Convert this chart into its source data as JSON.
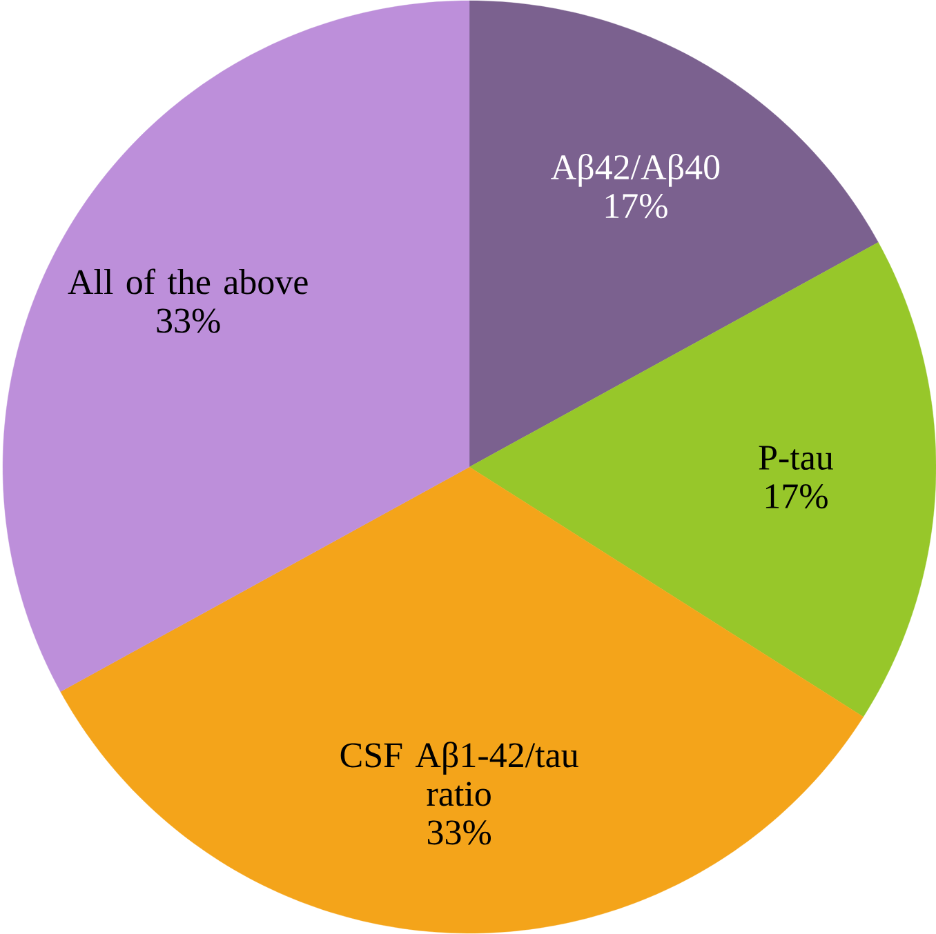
{
  "chart_data": {
    "type": "pie",
    "categories": [
      "Aβ42/Aβ40",
      "P-tau",
      "CSF Aβ1-42/tau ratio",
      "All of the above"
    ],
    "values": [
      17,
      17,
      33,
      33
    ],
    "value_labels": [
      "17%",
      "17%",
      "33%",
      "33%"
    ],
    "colors": [
      "#7b618f",
      "#97c72a",
      "#f4a41a",
      "#bd8fda"
    ]
  }
}
